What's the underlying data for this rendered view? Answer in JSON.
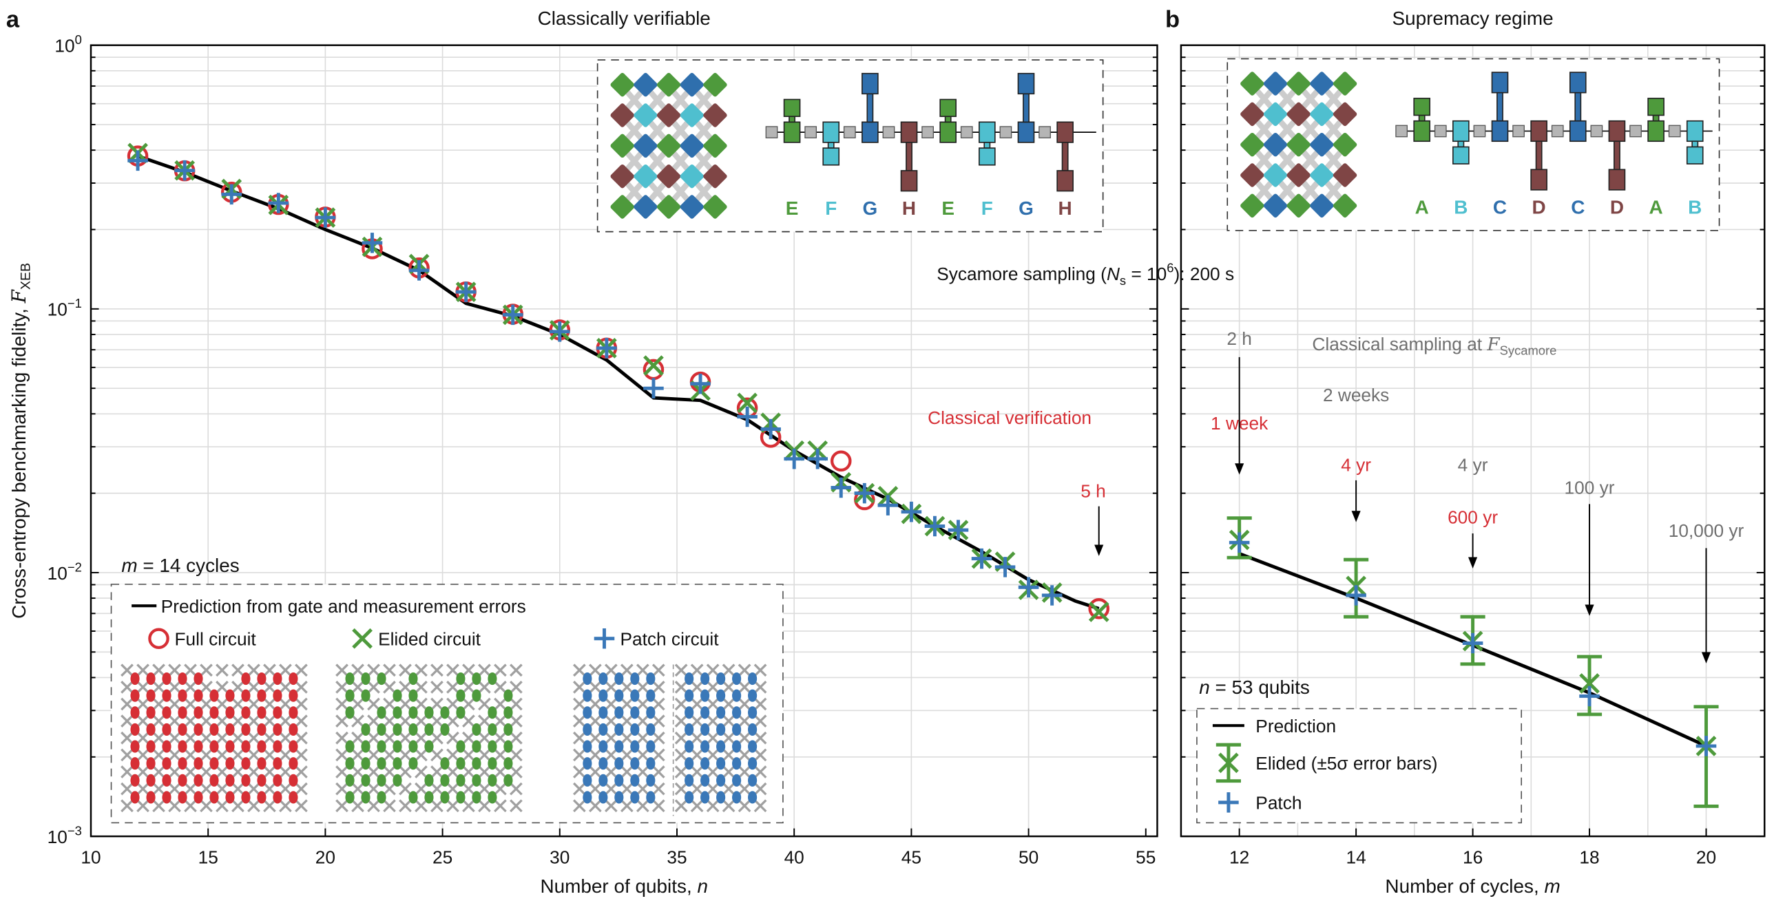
{
  "colors": {
    "full": "#d62f35",
    "elided": "#4e9a3c",
    "patch": "#3a78b8",
    "prediction": "#000000",
    "gray_text": "#6f6f6f",
    "red_text": "#d62f35",
    "gate_green": "#4e9a3c",
    "gate_cyan": "#4fbfcf",
    "gate_blue": "#2f6fad",
    "gate_brown": "#7f4545"
  },
  "chart_data": [
    {
      "panel": "a",
      "type": "scatter",
      "title": "Classically verifiable",
      "xlabel": {
        "text": "Number of qubits, ",
        "var": "n"
      },
      "ylabel": {
        "text": "Cross-entropy benchmarking fidelity, ",
        "symbol": "F",
        "sub": "XEB"
      },
      "xlim": [
        10,
        55.5
      ],
      "ylim": [
        0.001,
        1
      ],
      "yscale": "log",
      "grid": true,
      "xticks": [
        10,
        15,
        20,
        25,
        30,
        35,
        40,
        45,
        50,
        55
      ],
      "xtick_labels": [
        "10",
        "15",
        "20",
        "25",
        "30",
        "35",
        "40",
        "45",
        "50",
        "55"
      ],
      "yticks": [
        {
          "value": 1,
          "base": "10",
          "exp": "0"
        },
        {
          "value": 0.1,
          "base": "10",
          "exp": "−1"
        },
        {
          "value": 0.01,
          "base": "10",
          "exp": "−2"
        },
        {
          "value": 0.001,
          "base": "10",
          "exp": "−3"
        }
      ],
      "series": [
        {
          "name": "Prediction from gate and measurement errors",
          "kind": "line",
          "x": [
            12,
            14,
            16,
            18,
            20,
            22,
            24,
            26,
            28,
            30,
            32,
            34,
            36,
            38,
            40,
            42,
            44,
            46,
            48,
            50,
            52,
            53
          ],
          "y": [
            0.38,
            0.33,
            0.28,
            0.24,
            0.2,
            0.17,
            0.14,
            0.105,
            0.094,
            0.08,
            0.064,
            0.046,
            0.045,
            0.038,
            0.029,
            0.023,
            0.019,
            0.015,
            0.012,
            0.0094,
            0.0078,
            0.0073
          ]
        },
        {
          "name": "Full circuit",
          "kind": "circle",
          "x": [
            12,
            14,
            16,
            18,
            20,
            22,
            24,
            26,
            28,
            30,
            32,
            34,
            36,
            38,
            39,
            42,
            43,
            53
          ],
          "y": [
            0.38,
            0.334,
            0.277,
            0.249,
            0.223,
            0.169,
            0.143,
            0.116,
            0.0955,
            0.0832,
            0.071,
            0.0589,
            0.0528,
            0.0421,
            0.0326,
            0.0265,
            0.0189,
            0.0073
          ]
        },
        {
          "name": "Elided circuit",
          "kind": "x",
          "x": [
            12,
            14,
            16,
            18,
            20,
            22,
            24,
            26,
            28,
            30,
            32,
            34,
            36,
            38,
            39,
            40,
            41,
            42,
            43,
            44,
            45,
            46,
            47,
            48,
            49,
            50,
            51,
            53
          ],
          "y": [
            0.39,
            0.335,
            0.285,
            0.248,
            0.222,
            0.172,
            0.148,
            0.116,
            0.095,
            0.083,
            0.071,
            0.061,
            0.049,
            0.044,
            0.037,
            0.029,
            0.029,
            0.022,
            0.02,
            0.0195,
            0.0167,
            0.015,
            0.0145,
            0.0113,
            0.011,
            0.0086,
            0.0084,
            0.0071
          ]
        },
        {
          "name": "Patch circuit",
          "kind": "plus",
          "x": [
            12,
            14,
            16,
            18,
            20,
            22,
            24,
            26,
            28,
            30,
            32,
            34,
            36,
            38,
            39,
            40,
            41,
            42,
            43,
            44,
            45,
            46,
            47,
            48,
            49,
            50,
            51
          ],
          "y": [
            0.365,
            0.335,
            0.272,
            0.252,
            0.222,
            0.178,
            0.14,
            0.116,
            0.095,
            0.082,
            0.071,
            0.05,
            0.052,
            0.039,
            0.035,
            0.027,
            0.027,
            0.021,
            0.02,
            0.018,
            0.017,
            0.015,
            0.0145,
            0.0113,
            0.0105,
            0.0088,
            0.0082
          ]
        }
      ],
      "legend": {
        "placement": "bottom-left",
        "title_var": "m",
        "title_rest": " = 14 cycles"
      },
      "annotations": {
        "sycamore": {
          "text": "Sycamore sampling (",
          "var": "N",
          "sub": "s",
          "mid": " = 10",
          "sup": "6",
          "end": "): 200 s"
        },
        "classical_verification": "Classical verification",
        "verification_time": {
          "n": 53,
          "text": "5 h"
        }
      },
      "inset": {
        "gates": [
          "E",
          "F",
          "G",
          "H",
          "E",
          "F",
          "G",
          "H"
        ],
        "gate_colors": [
          "green",
          "cyan",
          "blue",
          "brown",
          "green",
          "cyan",
          "blue",
          "brown"
        ]
      }
    },
    {
      "panel": "b",
      "type": "scatter",
      "title": "Supremacy regime",
      "xlabel": {
        "text": "Number of cycles, ",
        "var": "m"
      },
      "xlim": [
        11,
        21
      ],
      "ylim": [
        0.001,
        1
      ],
      "yscale": "log",
      "grid": true,
      "xticks": [
        12,
        14,
        16,
        18,
        20
      ],
      "xtick_labels": [
        "12",
        "14",
        "16",
        "18",
        "20"
      ],
      "series": [
        {
          "name": "Prediction",
          "kind": "line",
          "x": [
            12,
            14,
            16,
            18,
            20
          ],
          "y": [
            0.0118,
            0.008,
            0.0053,
            0.0035,
            0.0022
          ]
        },
        {
          "name": "Elided (±5σ error bars)",
          "kind": "x_errorbar",
          "x": [
            12,
            14,
            16,
            18,
            20
          ],
          "y": [
            0.0133,
            0.0089,
            0.0055,
            0.0038,
            0.0022
          ],
          "err_low": [
            0.0114,
            0.0068,
            0.0045,
            0.0029,
            0.0013
          ],
          "err_high": [
            0.0161,
            0.0112,
            0.0068,
            0.0048,
            0.0031
          ]
        },
        {
          "name": "Patch",
          "kind": "plus",
          "x": [
            12,
            14,
            16,
            18,
            20
          ],
          "y": [
            0.013,
            0.0082,
            0.0054,
            0.0034,
            0.0022
          ]
        }
      ],
      "legend": {
        "placement": "bottom-left",
        "title_var": "n",
        "title_rest": " = 53 qubits"
      },
      "annotations": {
        "classical_sampling": {
          "text": "Classical sampling at ",
          "symbol": "F",
          "sub": "Sycamore"
        },
        "runtimes": [
          {
            "m": 12,
            "classical": "2 h",
            "verification": "1 week"
          },
          {
            "m": 14,
            "classical": "2 weeks",
            "verification": "4 yr"
          },
          {
            "m": 16,
            "classical": "4 yr",
            "verification": "600 yr"
          },
          {
            "m": 18,
            "classical": "100 yr"
          },
          {
            "m": 20,
            "classical": "10,000 yr"
          }
        ]
      },
      "inset": {
        "gates": [
          "A",
          "B",
          "C",
          "D",
          "C",
          "D",
          "A",
          "B"
        ],
        "gate_colors": [
          "green",
          "cyan",
          "blue",
          "brown",
          "blue",
          "brown",
          "green",
          "cyan"
        ]
      }
    }
  ]
}
